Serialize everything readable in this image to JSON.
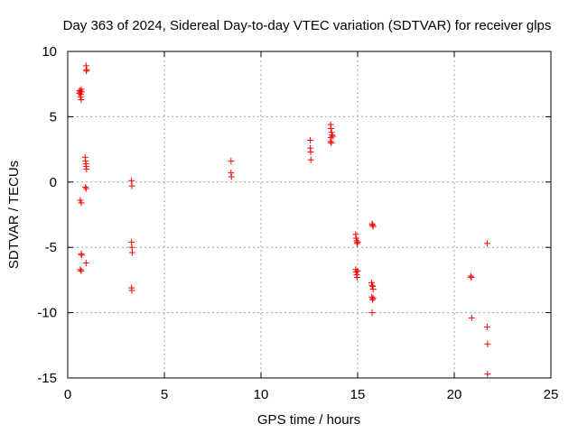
{
  "chart_data": {
    "type": "scatter",
    "title": "Day 363 of 2024, Sidereal Day-to-day VTEC variation (SDTVAR) for receiver glps",
    "xlabel": "GPS time / hours",
    "ylabel": "SDTVAR / TECUs",
    "xlim": [
      0,
      25
    ],
    "ylim": [
      -15,
      10
    ],
    "xticks": [
      0,
      5,
      10,
      15,
      20,
      25
    ],
    "yticks": [
      -15,
      -10,
      -5,
      0,
      5,
      10
    ],
    "grid": true,
    "marker": "+",
    "color": "#ff0000",
    "series": [
      {
        "name": "SDTVAR",
        "points": [
          [
            0.6,
            6.8
          ],
          [
            0.62,
            7.0
          ],
          [
            0.65,
            6.9
          ],
          [
            0.68,
            6.7
          ],
          [
            0.7,
            7.1
          ],
          [
            0.72,
            6.9
          ],
          [
            0.66,
            6.5
          ],
          [
            0.7,
            6.3
          ],
          [
            0.95,
            8.9
          ],
          [
            0.98,
            8.6
          ],
          [
            0.96,
            8.5
          ],
          [
            0.9,
            1.9
          ],
          [
            0.92,
            1.6
          ],
          [
            0.94,
            1.4
          ],
          [
            0.95,
            1.2
          ],
          [
            0.97,
            1.0
          ],
          [
            0.92,
            -0.4
          ],
          [
            0.95,
            -0.5
          ],
          [
            0.65,
            -1.4
          ],
          [
            0.7,
            -1.6
          ],
          [
            0.7,
            -5.5
          ],
          [
            0.72,
            -5.6
          ],
          [
            0.95,
            -6.2
          ],
          [
            0.65,
            -6.7
          ],
          [
            0.7,
            -6.8
          ],
          [
            3.3,
            0.1
          ],
          [
            3.32,
            -0.3
          ],
          [
            3.3,
            -4.6
          ],
          [
            3.32,
            -5.0
          ],
          [
            3.34,
            -5.4
          ],
          [
            3.3,
            -8.1
          ],
          [
            3.32,
            -8.3
          ],
          [
            8.45,
            1.6
          ],
          [
            8.45,
            0.7
          ],
          [
            8.47,
            0.4
          ],
          [
            12.55,
            3.2
          ],
          [
            12.55,
            2.6
          ],
          [
            12.57,
            2.3
          ],
          [
            12.58,
            1.7
          ],
          [
            13.6,
            4.4
          ],
          [
            13.62,
            4.1
          ],
          [
            13.65,
            3.8
          ],
          [
            13.68,
            3.6
          ],
          [
            13.62,
            3.4
          ],
          [
            13.6,
            3.1
          ],
          [
            13.64,
            3.0
          ],
          [
            13.7,
            3.5
          ],
          [
            14.9,
            -4.0
          ],
          [
            14.92,
            -4.3
          ],
          [
            14.95,
            -4.5
          ],
          [
            14.97,
            -4.7
          ],
          [
            15.0,
            -4.6
          ],
          [
            14.9,
            -6.7
          ],
          [
            14.92,
            -6.9
          ],
          [
            14.95,
            -7.1
          ],
          [
            14.97,
            -7.3
          ],
          [
            15.0,
            -6.8
          ],
          [
            15.75,
            -3.2
          ],
          [
            15.78,
            -3.3
          ],
          [
            15.8,
            -3.4
          ],
          [
            15.72,
            -7.7
          ],
          [
            15.75,
            -7.9
          ],
          [
            15.78,
            -8.0
          ],
          [
            15.8,
            -8.2
          ],
          [
            15.74,
            -8.8
          ],
          [
            15.77,
            -9.0
          ],
          [
            15.8,
            -8.9
          ],
          [
            15.75,
            -10.0
          ],
          [
            20.85,
            -7.2
          ],
          [
            20.88,
            -7.3
          ],
          [
            20.9,
            -10.4
          ],
          [
            21.7,
            -4.7
          ],
          [
            21.7,
            -11.1
          ],
          [
            21.72,
            -12.4
          ],
          [
            21.72,
            -14.7
          ]
        ]
      }
    ]
  }
}
